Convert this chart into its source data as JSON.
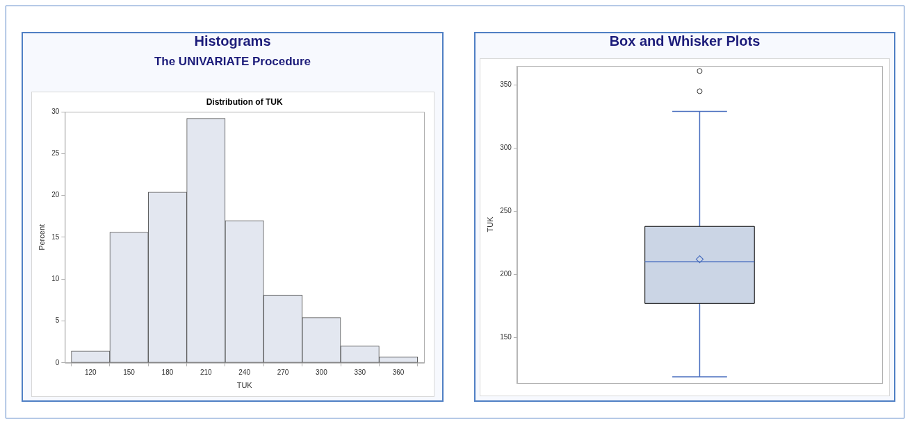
{
  "chart_data": [
    {
      "type": "histogram",
      "title": "Histograms",
      "subtitle": "The UNIVARIATE Procedure",
      "annotations": [
        "Distribution of TUK"
      ],
      "xlabel": "TUK",
      "ylabel": "Percent",
      "bins": [
        105,
        135,
        165,
        195,
        225,
        255,
        285,
        315,
        345,
        375
      ],
      "values": [
        1.4,
        15.6,
        20.4,
        29.2,
        17.0,
        8.1,
        5.4,
        2.0,
        0.7
      ],
      "color": "#e3e7f0",
      "xlim": [
        100,
        380
      ],
      "xticks": [
        120,
        150,
        180,
        210,
        240,
        270,
        300,
        330,
        360
      ],
      "ylim": [
        0,
        30
      ],
      "yticks": [
        0,
        5,
        10,
        15,
        20,
        25,
        30
      ]
    },
    {
      "type": "box",
      "title": "Box and Whisker Plots",
      "ylabel": "TUK",
      "categories": [
        null
      ],
      "color": "#cbd5e5",
      "boxes": [
        {
          "low": 119,
          "q1": 177,
          "median": 210,
          "q3": 238,
          "high": 329,
          "mean": 212,
          "outliers": [
            345,
            361
          ]
        }
      ],
      "ylim": [
        114,
        365
      ],
      "yticks": [
        150,
        200,
        250,
        300,
        350
      ],
      "tick_labels": "y"
    }
  ]
}
